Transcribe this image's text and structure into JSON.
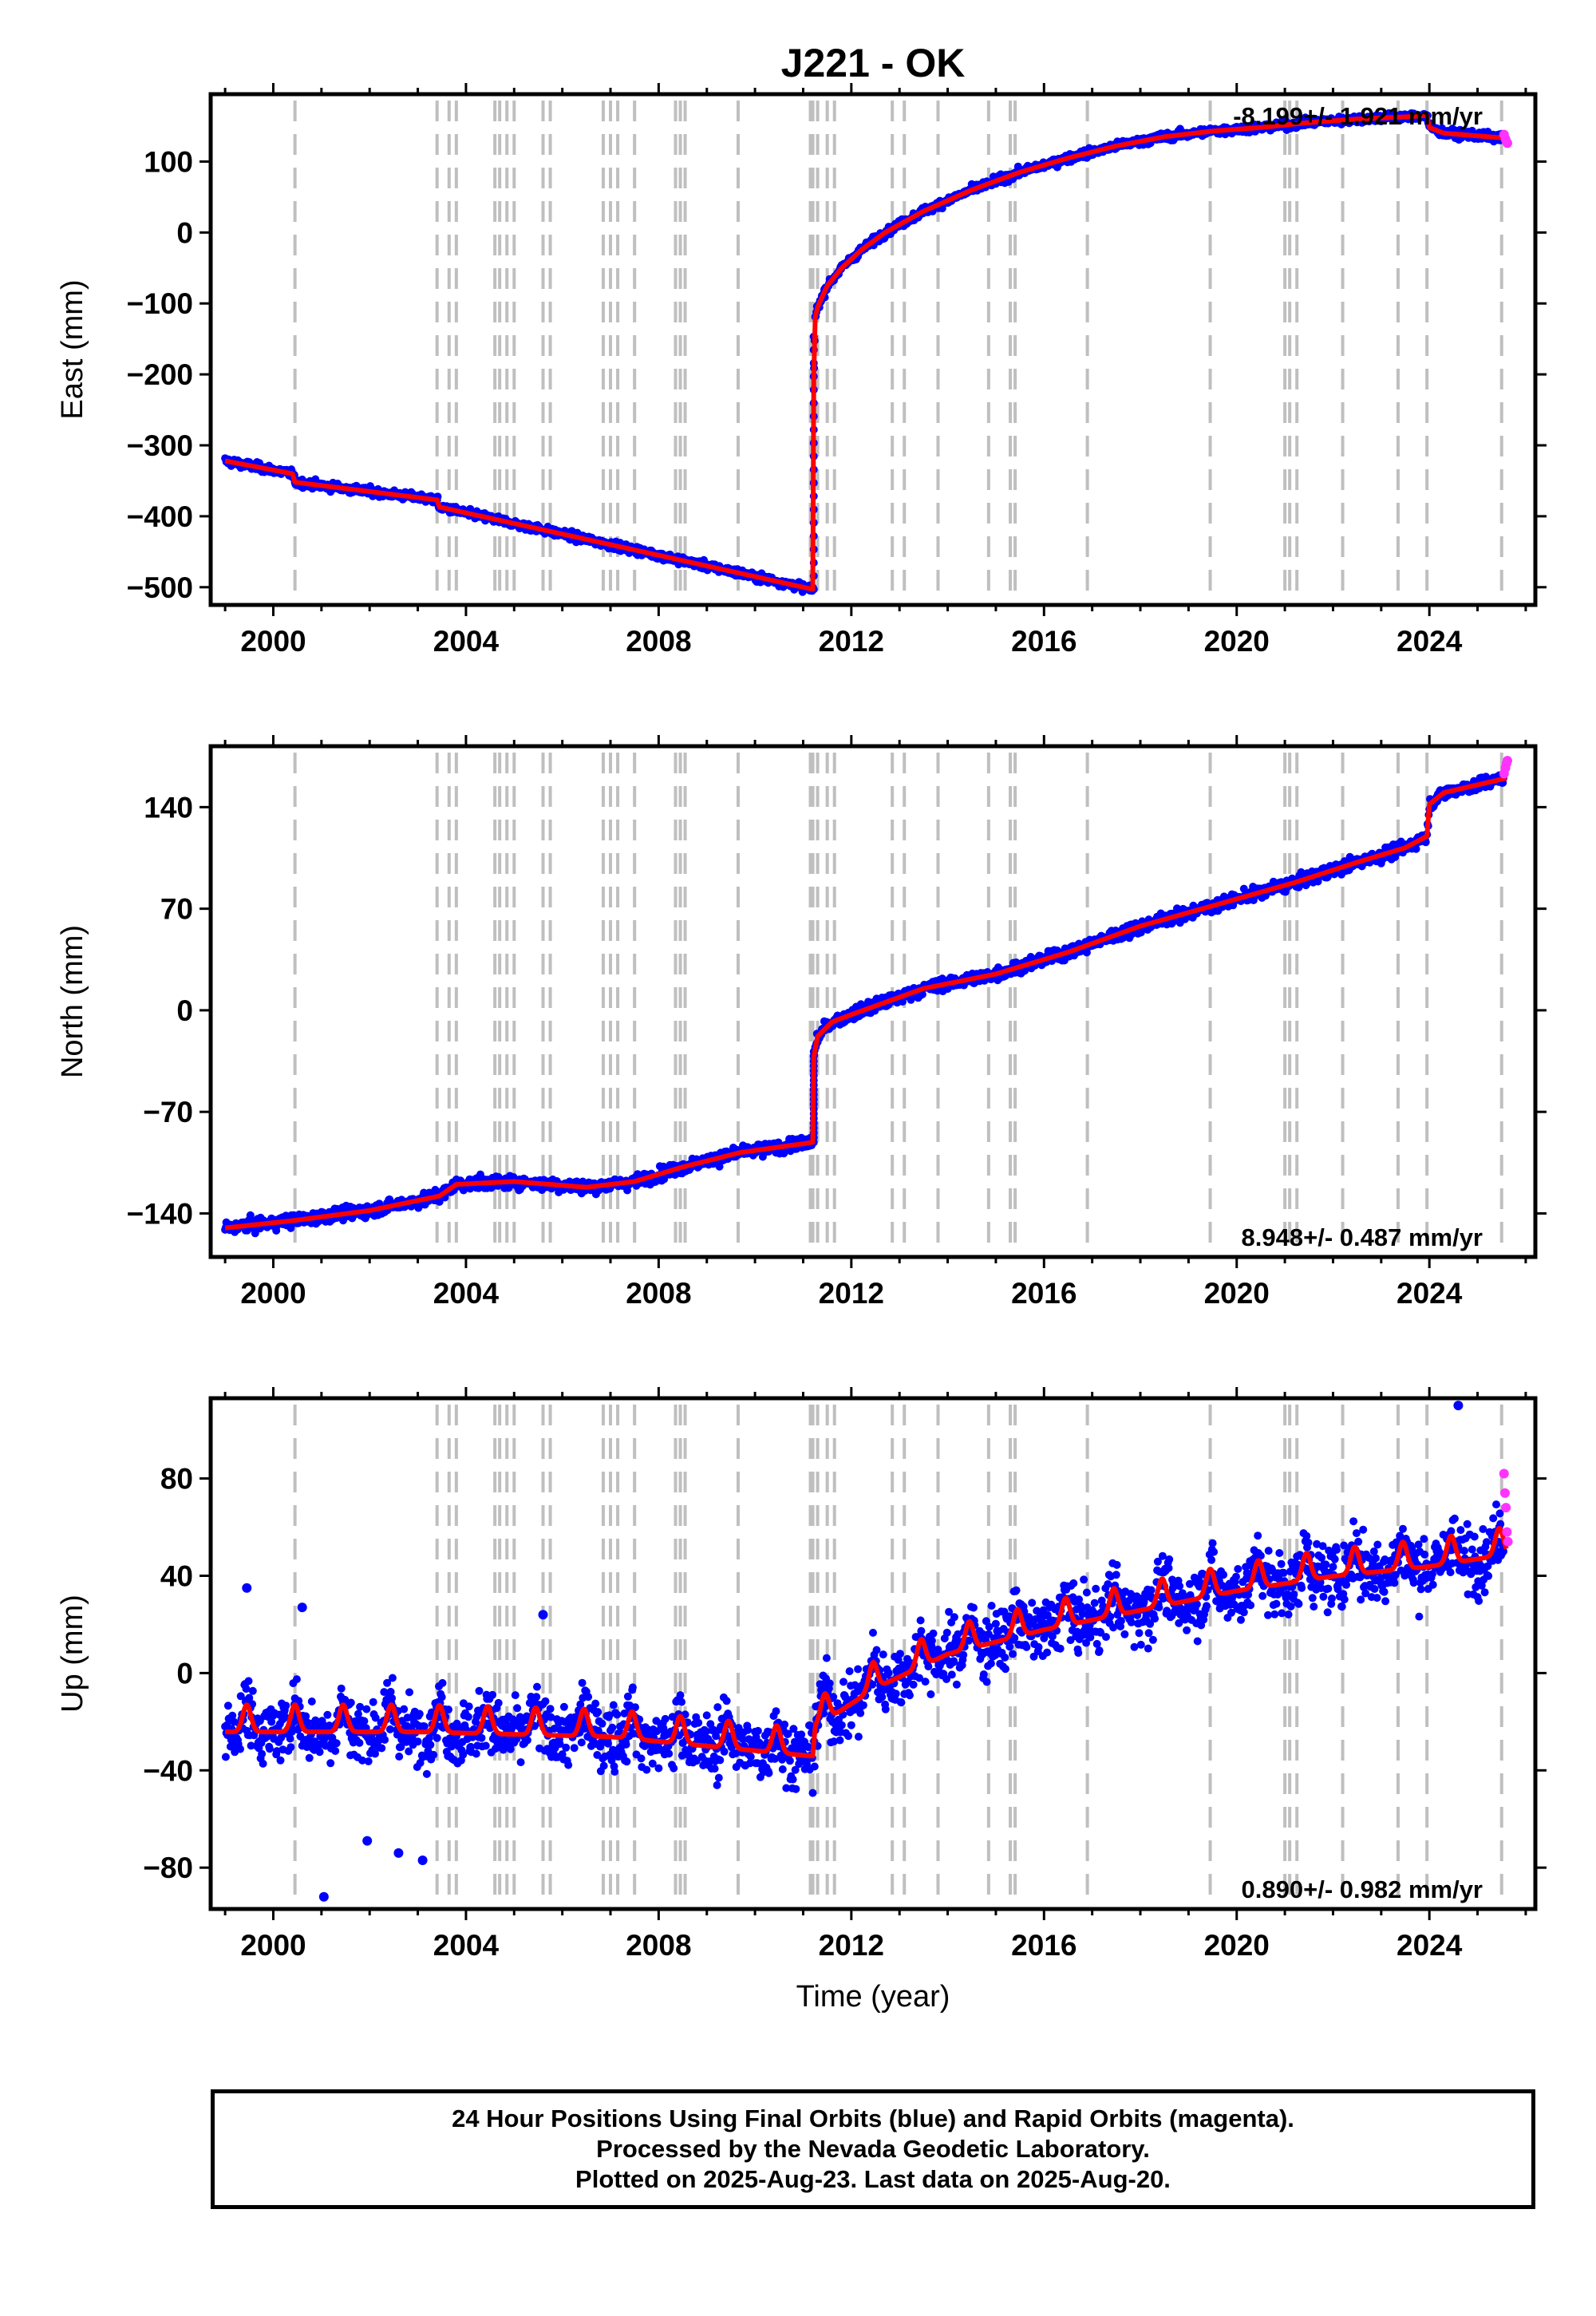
{
  "title": "J221 - OK",
  "xlabel": "Time (year)",
  "footnote": [
    "24 Hour Positions Using Final Orbits (blue) and Rapid Orbits (magenta).",
    "Processed by the Nevada Geodetic Laboratory.",
    "Plotted on 2025-Aug-23. Last data on 2025-Aug-20."
  ],
  "colors": {
    "final": "#0000ff",
    "rapid": "#ff33ff",
    "model": "#ff0000",
    "events": "#bfbfbf"
  },
  "chart_data": [
    {
      "type": "scatter",
      "component": "East",
      "ylabel": "East (mm)",
      "rate": "-8.199+/- 1.921 mm/yr",
      "rate_position": "top-right",
      "xlim": [
        1998.7,
        2026.2
      ],
      "ylim": [
        -525,
        195
      ],
      "yticks": [
        100,
        0,
        -100,
        -200,
        -300,
        -400,
        -500
      ],
      "xticks": [
        2000,
        2004,
        2008,
        2012,
        2016,
        2020,
        2024
      ],
      "series": [
        {
          "role": "model",
          "x": [
            1999.0,
            2000.4,
            2000.45,
            2003.4,
            2003.45,
            2007.0,
            2011.2,
            2011.22,
            2011.25,
            2011.3,
            2011.5,
            2011.8,
            2012.2,
            2012.7,
            2013.5,
            2014.5,
            2015.5,
            2016.5,
            2017.5,
            2018.5,
            2019.5,
            2020.5,
            2021.5,
            2022.5,
            2023.5,
            2023.95,
            2024.0,
            2024.3,
            2025.6
          ],
          "y": [
            -322,
            -340,
            -352,
            -377,
            -387,
            -440,
            -503,
            -200,
            -120,
            -105,
            -75,
            -50,
            -25,
            0,
            30,
            60,
            85,
            105,
            122,
            135,
            143,
            148,
            155,
            160,
            163,
            165,
            148,
            140,
            133
          ]
        },
        {
          "role": "final",
          "note": "daily positions scatter around model (~±10 mm)"
        },
        {
          "role": "rapid",
          "x": [
            2025.55,
            2025.58,
            2025.6,
            2025.62
          ],
          "y": [
            138,
            132,
            128,
            126
          ]
        }
      ]
    },
    {
      "type": "scatter",
      "component": "North",
      "ylabel": "North (mm)",
      "rate": "8.948+/- 0.487 mm/yr",
      "rate_position": "bottom-right",
      "xlim": [
        1998.7,
        2026.2
      ],
      "ylim": [
        -170,
        182
      ],
      "yticks": [
        140,
        70,
        0,
        -70,
        -140
      ],
      "xticks": [
        2000,
        2004,
        2008,
        2012,
        2016,
        2020,
        2024
      ],
      "series": [
        {
          "role": "model",
          "x": [
            1999.0,
            2000.4,
            2002.0,
            2003.45,
            2003.8,
            2005.0,
            2006.5,
            2007.5,
            2008.5,
            2009.7,
            2011.2,
            2011.22,
            2011.3,
            2011.6,
            2012.0,
            2013.5,
            2015.0,
            2016.5,
            2018.0,
            2019.5,
            2021.2,
            2022.5,
            2023.5,
            2023.95,
            2024.0,
            2024.3,
            2025.6
          ],
          "y": [
            -150,
            -145,
            -138,
            -128,
            -120,
            -118,
            -122,
            -118,
            -108,
            -98,
            -91,
            -32,
            -18,
            -8,
            -3,
            15,
            25,
            40,
            58,
            72,
            88,
            102,
            112,
            120,
            142,
            150,
            160
          ]
        },
        {
          "role": "final",
          "note": "daily positions scatter around model (~±6 mm)"
        },
        {
          "role": "rapid",
          "x": [
            2025.55,
            2025.58,
            2025.6,
            2025.62
          ],
          "y": [
            163,
            167,
            170,
            172
          ]
        }
      ]
    },
    {
      "type": "scatter",
      "component": "Up",
      "ylabel": "Up (mm)",
      "rate": "0.890+/- 0.982 mm/yr",
      "rate_position": "bottom-right",
      "xlim": [
        1998.7,
        2026.2
      ],
      "ylim": [
        -97,
        113
      ],
      "yticks": [
        80,
        40,
        0,
        -40,
        -80
      ],
      "xticks": [
        2000,
        2004,
        2008,
        2012,
        2016,
        2020,
        2024
      ],
      "seasonal_amplitude": 7,
      "series": [
        {
          "role": "model_trend",
          "x": [
            1999.0,
            2003.0,
            2007.0,
            2011.2,
            2011.25,
            2012.5,
            2014.0,
            2016.0,
            2018.0,
            2020.0,
            2022.0,
            2024.0,
            2025.6
          ],
          "y": [
            -20,
            -20,
            -22,
            -30,
            -18,
            -2,
            12,
            22,
            30,
            38,
            44,
            48,
            53
          ]
        },
        {
          "role": "final",
          "note": "daily positions scatter around model (~±10 mm)"
        },
        {
          "role": "outliers",
          "x": [
            1999.45,
            2000.6,
            2001.05,
            2001.95,
            2002.6,
            2003.1,
            2005.6,
            2024.6
          ],
          "y": [
            35,
            27,
            -92,
            -69,
            -74,
            -77,
            24,
            110
          ]
        },
        {
          "role": "rapid",
          "x": [
            2025.55,
            2025.57,
            2025.59,
            2025.61,
            2025.63
          ],
          "y": [
            82,
            74,
            68,
            58,
            54
          ]
        }
      ]
    }
  ],
  "event_lines": [
    2000.45,
    2003.4,
    2003.65,
    2003.8,
    2004.6,
    2004.7,
    2004.85,
    2005.0,
    2005.6,
    2005.75,
    2006.85,
    2007.0,
    2007.15,
    2007.5,
    2008.35,
    2008.45,
    2008.55,
    2009.65,
    2011.15,
    2011.2,
    2011.3,
    2011.5,
    2011.65,
    2012.85,
    2013.1,
    2013.8,
    2014.85,
    2015.3,
    2015.4,
    2016.9,
    2019.45,
    2021.0,
    2021.1,
    2021.25,
    2022.2,
    2023.35,
    2023.95,
    2025.5
  ]
}
